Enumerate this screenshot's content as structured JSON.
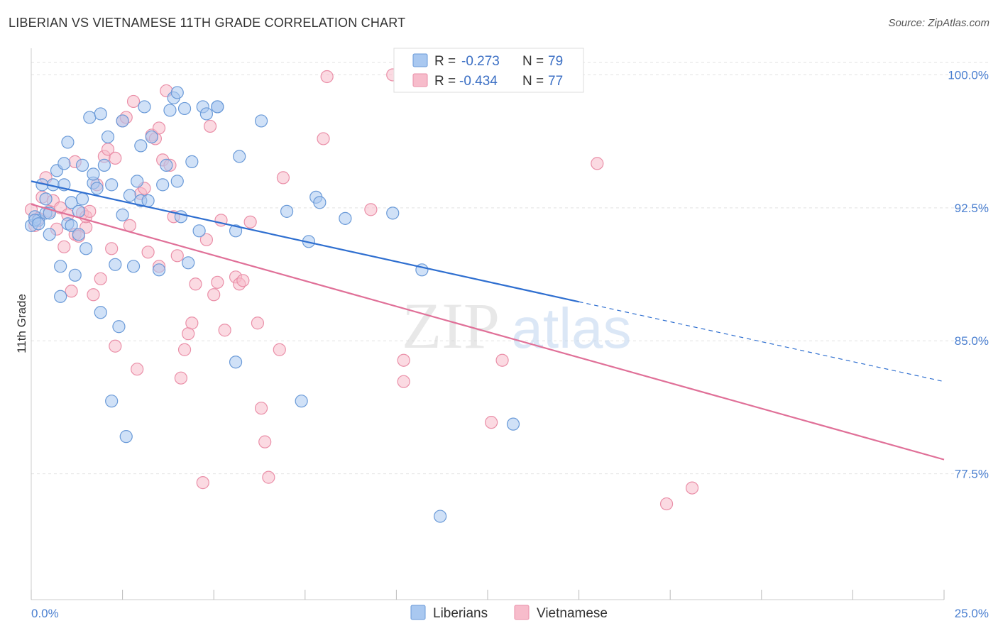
{
  "header": {
    "title": "LIBERIAN VS VIETNAMESE 11TH GRADE CORRELATION CHART",
    "source": "Source: ZipAtlas.com"
  },
  "watermark": {
    "zip": "ZIP",
    "atlas": "atlas"
  },
  "colors": {
    "liberian_fill": "#a9c8f0",
    "liberian_stroke": "#6a9ad8",
    "liberian_line": "#2f6fd0",
    "vietnamese_fill": "#f7bccb",
    "vietnamese_stroke": "#ea8fa8",
    "vietnamese_line": "#e07098",
    "tick_label": "#4a7fd0",
    "grid": "#e2e2e2"
  },
  "legend": {
    "r_label": "R =",
    "n_label": "N =",
    "rows": [
      {
        "series": "Liberians",
        "r": "-0.273",
        "n": "79"
      },
      {
        "series": "Vietnamese",
        "r": "-0.434",
        "n": "77"
      }
    ]
  },
  "chart_data": {
    "type": "scatter",
    "title": "LIBERIAN VS VIETNAMESE 11TH GRADE CORRELATION CHART",
    "xlabel": "",
    "ylabel": "11th Grade",
    "xlim": [
      0,
      25
    ],
    "ylim": [
      70.4,
      101.5
    ],
    "x_tick_labels": [
      "0.0%",
      "25.0%"
    ],
    "y_ticks": [
      77.5,
      85.0,
      92.5,
      100.0
    ],
    "y_tick_labels": [
      "77.5%",
      "85.0%",
      "92.5%",
      "100.0%"
    ],
    "grid": true,
    "legend_position": "top-center",
    "series": [
      {
        "name": "Liberians",
        "trend": {
          "x": [
            0,
            15,
            25
          ],
          "y": [
            94.0,
            87.2,
            82.7
          ],
          "dashed_from_x": 15
        },
        "points": [
          [
            0.0,
            91.5
          ],
          [
            0.1,
            92.0
          ],
          [
            0.2,
            91.8
          ],
          [
            0.3,
            93.8
          ],
          [
            0.4,
            93.0
          ],
          [
            0.4,
            92.2
          ],
          [
            0.5,
            91.0
          ],
          [
            0.6,
            93.8
          ],
          [
            0.7,
            94.6
          ],
          [
            0.8,
            89.2
          ],
          [
            0.8,
            87.5
          ],
          [
            0.9,
            95.0
          ],
          [
            1.0,
            91.6
          ],
          [
            1.0,
            96.2
          ],
          [
            1.1,
            92.8
          ],
          [
            1.1,
            91.5
          ],
          [
            1.2,
            88.7
          ],
          [
            1.3,
            91.0
          ],
          [
            1.4,
            94.9
          ],
          [
            1.4,
            93.0
          ],
          [
            1.5,
            90.2
          ],
          [
            1.6,
            97.6
          ],
          [
            1.7,
            93.9
          ],
          [
            1.7,
            94.4
          ],
          [
            1.8,
            93.6
          ],
          [
            1.9,
            97.8
          ],
          [
            1.9,
            86.6
          ],
          [
            2.0,
            94.9
          ],
          [
            2.1,
            96.5
          ],
          [
            2.2,
            81.6
          ],
          [
            2.2,
            93.8
          ],
          [
            2.3,
            89.3
          ],
          [
            2.4,
            85.8
          ],
          [
            2.5,
            97.4
          ],
          [
            2.5,
            92.1
          ],
          [
            2.6,
            79.6
          ],
          [
            2.7,
            93.2
          ],
          [
            2.8,
            89.2
          ],
          [
            2.9,
            94.0
          ],
          [
            3.0,
            92.9
          ],
          [
            3.0,
            96.0
          ],
          [
            3.1,
            98.2
          ],
          [
            3.3,
            96.5
          ],
          [
            3.6,
            93.8
          ],
          [
            3.7,
            94.9
          ],
          [
            3.8,
            98.0
          ],
          [
            3.9,
            98.7
          ],
          [
            4.0,
            99.0
          ],
          [
            4.0,
            94.0
          ],
          [
            4.1,
            92.0
          ],
          [
            4.2,
            98.1
          ],
          [
            4.3,
            89.4
          ],
          [
            4.4,
            95.1
          ],
          [
            4.6,
            91.2
          ],
          [
            4.7,
            98.2
          ],
          [
            4.8,
            97.8
          ],
          [
            5.1,
            98.2
          ],
          [
            5.1,
            98.2
          ],
          [
            5.6,
            83.8
          ],
          [
            5.6,
            91.2
          ],
          [
            5.7,
            95.4
          ],
          [
            6.3,
            97.4
          ],
          [
            7.0,
            92.3
          ],
          [
            7.4,
            81.6
          ],
          [
            7.6,
            90.6
          ],
          [
            7.8,
            93.1
          ],
          [
            7.9,
            92.8
          ],
          [
            8.6,
            91.9
          ],
          [
            9.9,
            92.2
          ],
          [
            10.7,
            89.0
          ],
          [
            11.2,
            75.1
          ],
          [
            13.2,
            80.3
          ],
          [
            0.1,
            91.8
          ],
          [
            0.2,
            91.6
          ],
          [
            0.5,
            92.2
          ],
          [
            0.9,
            93.8
          ],
          [
            1.3,
            92.3
          ],
          [
            3.2,
            92.9
          ],
          [
            3.5,
            89.0
          ]
        ]
      },
      {
        "name": "Vietnamese",
        "trend": {
          "x": [
            0,
            25
          ],
          "y": [
            92.7,
            78.3
          ]
        },
        "points": [
          [
            0.0,
            92.4
          ],
          [
            0.1,
            91.5
          ],
          [
            0.2,
            91.9
          ],
          [
            0.3,
            93.1
          ],
          [
            0.4,
            94.2
          ],
          [
            0.5,
            92.3
          ],
          [
            0.6,
            92.9
          ],
          [
            0.7,
            91.3
          ],
          [
            0.8,
            92.5
          ],
          [
            0.9,
            90.3
          ],
          [
            1.0,
            92.1
          ],
          [
            1.1,
            87.8
          ],
          [
            1.2,
            91.0
          ],
          [
            1.2,
            95.1
          ],
          [
            1.3,
            90.9
          ],
          [
            1.4,
            92.2
          ],
          [
            1.5,
            91.4
          ],
          [
            1.5,
            92.0
          ],
          [
            1.6,
            92.3
          ],
          [
            1.7,
            87.6
          ],
          [
            1.8,
            93.8
          ],
          [
            1.9,
            88.5
          ],
          [
            2.0,
            95.4
          ],
          [
            2.1,
            95.8
          ],
          [
            2.2,
            90.2
          ],
          [
            2.3,
            95.3
          ],
          [
            2.3,
            84.7
          ],
          [
            2.5,
            97.4
          ],
          [
            2.6,
            97.6
          ],
          [
            2.7,
            91.5
          ],
          [
            2.8,
            98.5
          ],
          [
            2.9,
            83.4
          ],
          [
            3.0,
            93.3
          ],
          [
            3.1,
            93.6
          ],
          [
            3.2,
            90.0
          ],
          [
            3.3,
            96.6
          ],
          [
            3.4,
            96.4
          ],
          [
            3.5,
            89.2
          ],
          [
            3.5,
            97.0
          ],
          [
            3.6,
            95.2
          ],
          [
            3.7,
            99.1
          ],
          [
            3.8,
            94.9
          ],
          [
            3.9,
            92.0
          ],
          [
            4.0,
            89.8
          ],
          [
            4.1,
            82.9
          ],
          [
            4.2,
            84.5
          ],
          [
            4.3,
            85.4
          ],
          [
            4.4,
            86.0
          ],
          [
            4.5,
            88.2
          ],
          [
            4.7,
            77.0
          ],
          [
            4.8,
            90.7
          ],
          [
            4.9,
            97.1
          ],
          [
            5.0,
            87.6
          ],
          [
            5.1,
            88.3
          ],
          [
            5.2,
            91.8
          ],
          [
            5.3,
            85.6
          ],
          [
            5.6,
            88.6
          ],
          [
            5.7,
            88.2
          ],
          [
            5.8,
            88.4
          ],
          [
            6.0,
            91.7
          ],
          [
            6.2,
            86.0
          ],
          [
            6.3,
            81.2
          ],
          [
            6.4,
            79.3
          ],
          [
            6.5,
            77.3
          ],
          [
            6.8,
            84.5
          ],
          [
            6.9,
            94.2
          ],
          [
            8.0,
            96.4
          ],
          [
            8.1,
            99.9
          ],
          [
            9.3,
            92.4
          ],
          [
            9.9,
            100.0
          ],
          [
            10.2,
            83.9
          ],
          [
            10.2,
            82.7
          ],
          [
            12.6,
            80.4
          ],
          [
            12.9,
            83.9
          ],
          [
            15.5,
            95.0
          ],
          [
            17.4,
            75.8
          ],
          [
            18.1,
            76.7
          ]
        ]
      }
    ]
  }
}
